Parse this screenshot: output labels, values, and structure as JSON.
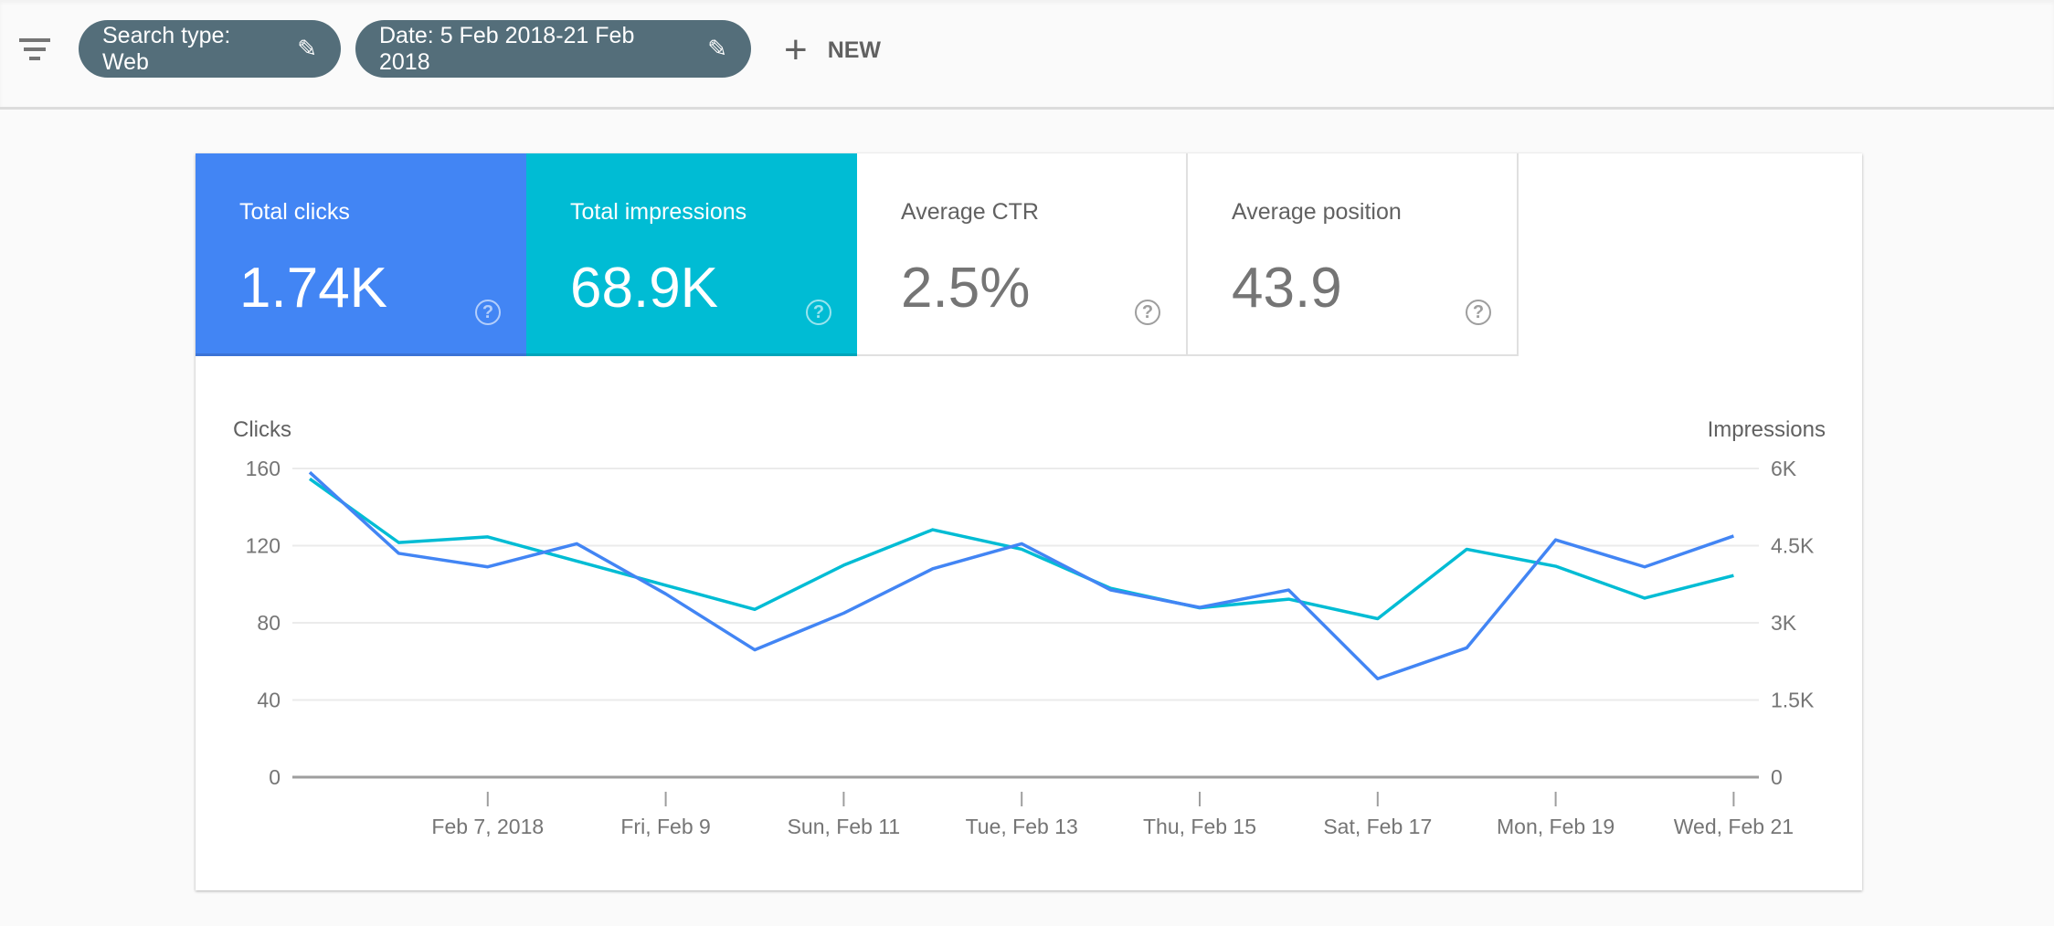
{
  "toolbar": {
    "filter_icon": "filter-list-icon",
    "chips": [
      {
        "label": "Search type: Web",
        "icon": "pencil-icon"
      },
      {
        "label": "Date: 5 Feb 2018-21 Feb 2018",
        "icon": "pencil-icon"
      }
    ],
    "new_label": "NEW",
    "new_icon": "plus-icon"
  },
  "metrics": [
    {
      "label": "Total clicks",
      "value": "1.74K",
      "color": "#4285f4",
      "selected": true
    },
    {
      "label": "Total impressions",
      "value": "68.9K",
      "color": "#00bcd4",
      "selected": true
    },
    {
      "label": "Average CTR",
      "value": "2.5%",
      "selected": false
    },
    {
      "label": "Average position",
      "value": "43.9",
      "selected": false
    }
  ],
  "help_glyph": "?",
  "chart_data": {
    "type": "line",
    "left_axis_label": "Clicks",
    "right_axis_label": "Impressions",
    "x": [
      "2018-02-05",
      "2018-02-06",
      "2018-02-07",
      "2018-02-08",
      "2018-02-09",
      "2018-02-10",
      "2018-02-11",
      "2018-02-12",
      "2018-02-13",
      "2018-02-14",
      "2018-02-15",
      "2018-02-16",
      "2018-02-17",
      "2018-02-18",
      "2018-02-19",
      "2018-02-20",
      "2018-02-21"
    ],
    "x_tick_labels": [
      "Feb 7, 2018",
      "Fri, Feb 9",
      "Sun, Feb 11",
      "Tue, Feb 13",
      "Thu, Feb 15",
      "Sat, Feb 17",
      "Mon, Feb 19",
      "Wed, Feb 21"
    ],
    "left_ticks": [
      "0",
      "40",
      "80",
      "120",
      "160"
    ],
    "right_ticks": [
      "0",
      "1.5K",
      "3K",
      "4.5K",
      "6K"
    ],
    "left_ylim": [
      0,
      160
    ],
    "right_ylim": [
      0,
      6000
    ],
    "grid": true,
    "series": [
      {
        "name": "Clicks",
        "axis": "left",
        "color": "#4285f4",
        "values": [
          158,
          116,
          109,
          121,
          95,
          66,
          85,
          108,
          121,
          97,
          88,
          97,
          51,
          67,
          123,
          109,
          125
        ]
      },
      {
        "name": "Impressions",
        "axis": "right",
        "color": "#00bcd4",
        "values": [
          5800,
          4560,
          4670,
          4200,
          3730,
          3260,
          4120,
          4810,
          4430,
          3670,
          3290,
          3460,
          3080,
          4430,
          4100,
          3480,
          3920
        ]
      }
    ]
  }
}
